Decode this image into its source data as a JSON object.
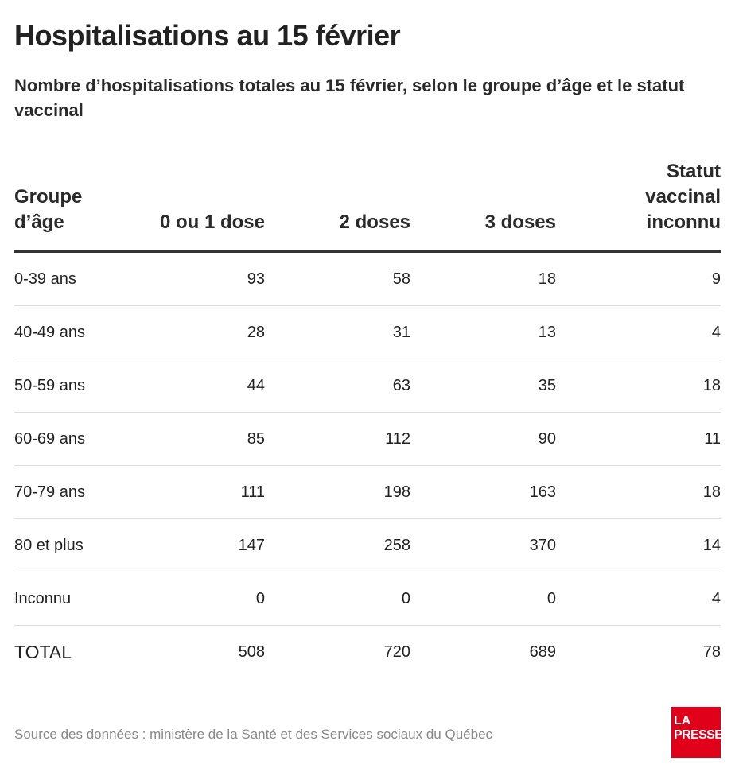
{
  "header": {
    "title": "Hospitalisations au 15 février",
    "subtitle": "Nombre d’hospitalisations totales au 15 février, selon le groupe d’âge et le statut vaccinal"
  },
  "chart_data": {
    "type": "table",
    "columns": [
      {
        "lines": [
          "Groupe",
          "d’âge"
        ]
      },
      {
        "lines": [
          "0 ou 1 dose"
        ]
      },
      {
        "lines": [
          "2 doses"
        ]
      },
      {
        "lines": [
          "3 doses"
        ]
      },
      {
        "lines": [
          "Statut",
          "vaccinal",
          "inconnu"
        ]
      }
    ],
    "rows": [
      [
        "0-39 ans",
        "93",
        "58",
        "18",
        "9"
      ],
      [
        "40-49 ans",
        "28",
        "31",
        "13",
        "4"
      ],
      [
        "50-59 ans",
        "44",
        "63",
        "35",
        "18"
      ],
      [
        "60-69 ans",
        "85",
        "112",
        "90",
        "11"
      ],
      [
        "70-79 ans",
        "111",
        "198",
        "163",
        "18"
      ],
      [
        "80 et plus",
        "147",
        "258",
        "370",
        "14"
      ],
      [
        "Inconnu",
        "0",
        "0",
        "0",
        "4"
      ],
      [
        "TOTAL",
        "508",
        "720",
        "689",
        "78"
      ]
    ]
  },
  "footer": {
    "source": "Source des données : ministère de la Santé et des Services sociaux du Québec",
    "logo_line1": "LA",
    "logo_line2": "PRESSE"
  },
  "colors": {
    "logo_background": "#e1001a",
    "text": "#222222",
    "source_text": "#888888"
  }
}
